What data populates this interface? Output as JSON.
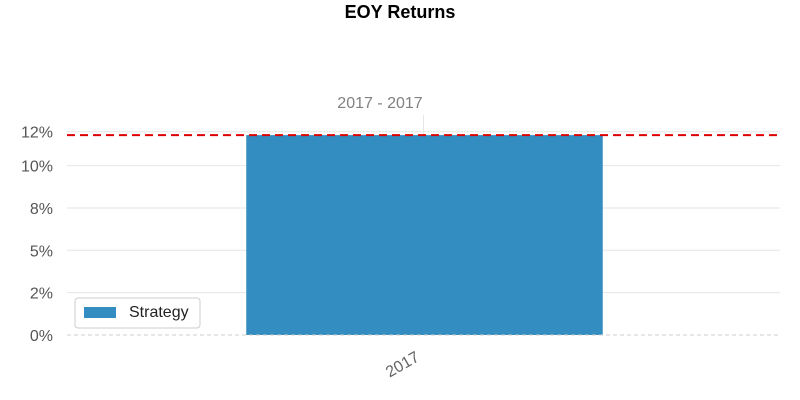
{
  "chart_data": {
    "type": "bar",
    "title": "EOY Returns",
    "subtitle": "2017 - 2017",
    "categories": [
      "2017"
    ],
    "series": [
      {
        "name": "Strategy",
        "values": [
          11.8
        ]
      }
    ],
    "reference_line": {
      "value": 11.8,
      "style": "dashed",
      "color": "#dd0000"
    },
    "ylim": [
      0,
      12.5
    ],
    "yticks": [
      {
        "value": 0,
        "label": "0%"
      },
      {
        "value": 2.5,
        "label": "2%"
      },
      {
        "value": 5,
        "label": "5%"
      },
      {
        "value": 7.5,
        "label": "8%"
      },
      {
        "value": 10,
        "label": "10%"
      },
      {
        "value": 12,
        "label": "12%"
      }
    ],
    "grid": true,
    "legend_position": "bottom-left",
    "colors": {
      "bar": "#348dc1",
      "reference": "#dd0000",
      "grid": "#e6e6e6",
      "zero_line": "#cccccc"
    }
  }
}
